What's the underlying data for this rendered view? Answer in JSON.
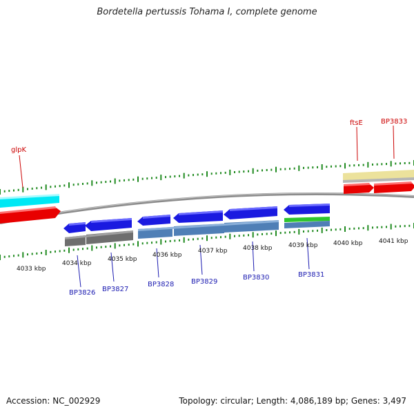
{
  "title": "Bordetella pertussis Tohama I, complete genome",
  "footer": {
    "accession": "Accession: NC_002929",
    "summary": "Topology: circular; Length: 4,086,189 bp; Genes: 3,497"
  },
  "colors": {
    "tick": "#1f8a1f",
    "backbone": "#8c8c8c",
    "cds_blue": "#1a1ae0",
    "cds_steel": "#4f7fb6",
    "gene_gray": "#6e6e6e",
    "gene_red": "#e00000",
    "gene_cyan": "#00e0f0",
    "gene_khaki": "#ece29c",
    "gene_green": "#2ec52e",
    "label_red": "#cc0000",
    "label_blue": "#1a1ab0"
  },
  "scale": {
    "ticks": [
      "4033 kbp",
      "4034 kbp",
      "4035 kbp",
      "4036 kbp",
      "4037 kbp",
      "4038 kbp",
      "4039 kbp",
      "4040 kbp",
      "4041 kbp"
    ]
  },
  "features": {
    "top": [
      {
        "name": "glpK",
        "color": "label_red"
      },
      {
        "name": "ftsE",
        "color": "label_red"
      },
      {
        "name": "BP3833",
        "color": "label_red"
      }
    ],
    "bottom": [
      {
        "name": "BP3826",
        "color": "label_blue"
      },
      {
        "name": "BP3827",
        "color": "label_blue"
      },
      {
        "name": "BP3828",
        "color": "label_blue"
      },
      {
        "name": "BP3829",
        "color": "label_blue"
      },
      {
        "name": "BP3830",
        "color": "label_blue"
      },
      {
        "name": "BP3831",
        "color": "label_blue"
      }
    ]
  }
}
